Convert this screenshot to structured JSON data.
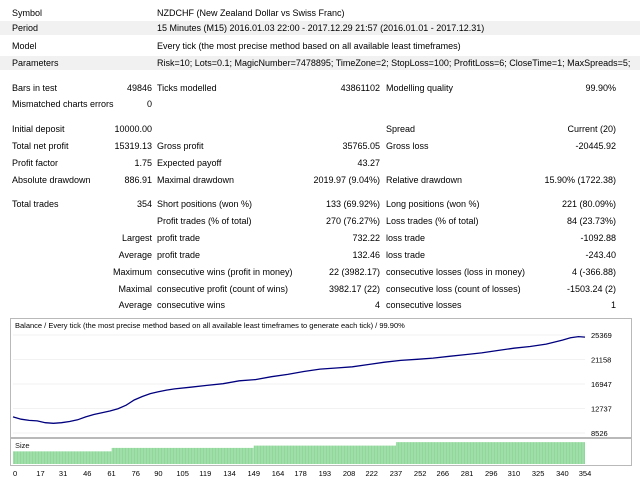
{
  "header": {
    "symbol_label": "Symbol",
    "symbol_value": "NZDCHF (New Zealand Dollar vs Swiss Franc)",
    "period_label": "Period",
    "period_value": "15 Minutes (M15) 2016.01.03 22:00 - 2017.12.29 21:57 (2016.01.01 - 2017.12.31)",
    "model_label": "Model",
    "model_value": "Every tick (the most precise method based on all available least timeframes)",
    "params_label": "Parameters",
    "params_value": "Risk=10; Lots=0.1; MagicNumber=7478895; TimeZone=2; StopLoss=100; ProfitLoss=6; CloseTime=1; MaxSpreads=5;"
  },
  "stats": {
    "bars_label": "Bars in test",
    "bars_value": "49846",
    "ticks_label": "Ticks modelled",
    "ticks_value": "43861102",
    "quality_label": "Modelling quality",
    "quality_value": "99.90%",
    "mismatch_label": "Mismatched charts errors",
    "mismatch_value": "0",
    "deposit_label": "Initial deposit",
    "deposit_value": "10000.00",
    "spread_label": "Spread",
    "spread_value": "Current (20)",
    "netprofit_label": "Total net profit",
    "netprofit_value": "15319.13",
    "grossprofit_label": "Gross profit",
    "grossprofit_value": "35765.05",
    "grossloss_label": "Gross loss",
    "grossloss_value": "-20445.92",
    "pf_label": "Profit factor",
    "pf_value": "1.75",
    "payoff_label": "Expected payoff",
    "payoff_value": "43.27",
    "absdd_label": "Absolute drawdown",
    "absdd_value": "886.91",
    "maxdd_label": "Maximal drawdown",
    "maxdd_value": "2019.97 (9.04%)",
    "reldd_label": "Relative drawdown",
    "reldd_value": "15.90% (1722.38)",
    "trades_label": "Total trades",
    "trades_value": "354",
    "short_label": "Short positions (won %)",
    "short_value": "133 (69.92%)",
    "long_label": "Long positions (won %)",
    "long_value": "221 (80.09%)",
    "profittrades_label": "Profit trades (% of total)",
    "profittrades_value": "270 (76.27%)",
    "losstrades_label": "Loss trades (% of total)",
    "losstrades_value": "84 (23.73%)",
    "largest_label": "Largest",
    "largest_profit_label": "profit trade",
    "largest_profit_value": "732.22",
    "largest_loss_label": "loss trade",
    "largest_loss_value": "-1092.88",
    "average_label": "Average",
    "average_profit_label": "profit trade",
    "average_profit_value": "132.46",
    "average_loss_label": "loss trade",
    "average_loss_value": "-243.40",
    "maximum_label": "Maximum",
    "max_wins_label": "consecutive wins (profit in money)",
    "max_wins_value": "22 (3982.17)",
    "max_losses_label": "consecutive losses (loss in money)",
    "max_losses_value": "4 (-366.88)",
    "maximal_label": "Maximal",
    "mxl_profit_label": "consecutive profit (count of wins)",
    "mxl_profit_value": "3982.17 (22)",
    "mxl_loss_label": "consecutive loss (count of losses)",
    "mxl_loss_value": "-1503.24 (2)",
    "avg2_label": "Average",
    "avg_wins_label": "consecutive wins",
    "avg_wins_value": "4",
    "avg_losses_label": "consecutive losses",
    "avg_losses_value": "1"
  },
  "chart_data": {
    "type": "line",
    "title": "Balance / Every tick (the most precise method based on all available least timeframes to generate each tick) / 99.90%",
    "size_label": "Size",
    "colors": {
      "line": "#00007f",
      "bars": "#8fd89a"
    },
    "y_ticks": [
      "25369",
      "21158",
      "16947",
      "12737",
      "8526"
    ],
    "ylim": [
      8526,
      25369
    ],
    "x_ticks": [
      "0",
      "17",
      "31",
      "46",
      "61",
      "76",
      "90",
      "105",
      "119",
      "134",
      "149",
      "164",
      "178",
      "193",
      "208",
      "222",
      "237",
      "252",
      "266",
      "281",
      "296",
      "310",
      "325",
      "340",
      "354"
    ],
    "xlim": [
      0,
      354
    ],
    "series": [
      {
        "x": [
          0,
          5,
          10,
          15,
          20,
          25,
          30,
          35,
          40,
          45,
          50,
          55,
          60,
          65,
          70,
          75,
          80,
          85,
          90,
          95,
          100,
          110,
          120,
          130,
          140,
          150,
          160,
          170,
          180,
          190,
          200,
          210,
          220,
          230,
          240,
          250,
          260,
          270,
          280,
          290,
          300,
          310,
          320,
          330,
          340,
          345,
          350,
          354
        ],
        "values": [
          11300,
          10900,
          10700,
          10600,
          10300,
          10200,
          10300,
          10500,
          10800,
          11300,
          11700,
          12000,
          12300,
          12700,
          13300,
          14200,
          14800,
          15300,
          15600,
          15900,
          16100,
          16400,
          16700,
          17000,
          17500,
          17700,
          18200,
          18600,
          19100,
          19500,
          19700,
          19900,
          20300,
          20700,
          21000,
          21200,
          21400,
          21700,
          22000,
          22300,
          22700,
          23100,
          23400,
          23800,
          24500,
          24900,
          25100,
          25000
        ]
      }
    ],
    "size_series": [
      {
        "x_from": 0,
        "x_to": 61,
        "value": 0.55
      },
      {
        "x_from": 61,
        "x_to": 149,
        "value": 0.7
      },
      {
        "x_from": 149,
        "x_to": 237,
        "value": 0.8
      },
      {
        "x_from": 237,
        "x_to": 354,
        "value": 0.95
      }
    ]
  }
}
